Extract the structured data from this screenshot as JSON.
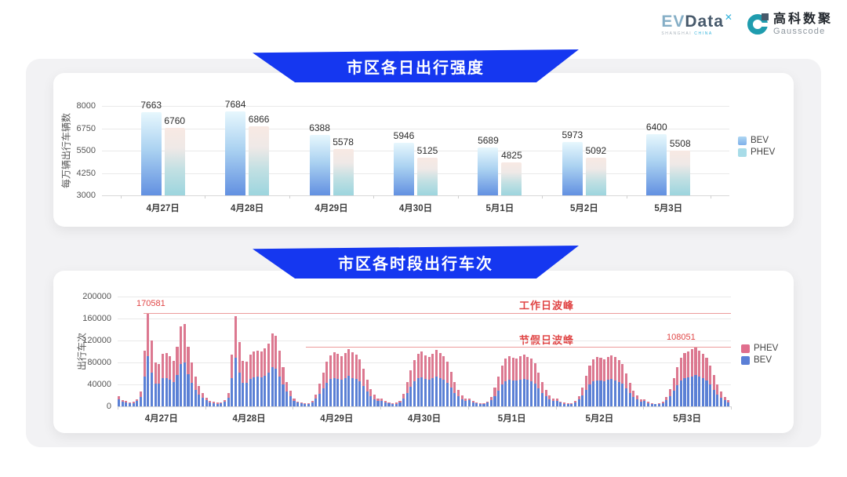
{
  "header": {
    "evdata_logo": {
      "part_ev": "EV",
      "part_data": "Data",
      "sup": "✕",
      "sub_left": "SHANGHAI",
      "sub_right": "CHINA"
    },
    "gausscode_logo": {
      "name_cn": "高科数聚",
      "name_en": "Gausscode"
    }
  },
  "colors": {
    "banner_blue": "#1537f0",
    "bev_blue": "#5b80d5",
    "phev_pink": "#dc7890",
    "annotation_red": "#e04545",
    "bev_gradient": [
      "#e7f7fd",
      "#6290e1"
    ],
    "phev_gradient": [
      "#f8e9e3",
      "#9cd5de"
    ]
  },
  "chart_data": [
    {
      "type": "bar",
      "title": "市区各日出行强度",
      "ylabel": "每万辆出行车辆数",
      "ylim": [
        3000,
        8000
      ],
      "yticks": [
        3000,
        4250,
        5500,
        6750,
        8000
      ],
      "grid": true,
      "legend_position": "right",
      "categories": [
        "4月27日",
        "4月28日",
        "4月29日",
        "4月30日",
        "5月1日",
        "5月2日",
        "5月3日"
      ],
      "series": [
        {
          "name": "BEV",
          "values": [
            7663,
            7684,
            6388,
            5946,
            5689,
            5973,
            6400
          ]
        },
        {
          "name": "PHEV",
          "values": [
            6760,
            6866,
            5578,
            5125,
            4825,
            5092,
            5508
          ]
        }
      ]
    },
    {
      "type": "bar",
      "stacked": true,
      "title": "市区各时段出行车次",
      "ylabel": "出行车次",
      "ylim": [
        0,
        200000
      ],
      "yticks": [
        0,
        40000,
        80000,
        120000,
        160000,
        200000
      ],
      "grid": true,
      "legend_position": "right",
      "legend": [
        "PHEV",
        "BEV"
      ],
      "categories": [
        "4月27日",
        "4月28日",
        "4月29日",
        "4月30日",
        "5月1日",
        "5月2日",
        "5月3日"
      ],
      "bars_per_category": 24,
      "annotations": {
        "workday_peak": {
          "label": "工作日波峰",
          "value": 170581
        },
        "holiday_peak": {
          "label": "节假日波峰",
          "value": 108051
        }
      },
      "series": [
        {
          "name": "BEV",
          "values_by_day": [
            [
              13000,
              8500,
              6800,
              5400,
              6100,
              9400,
              17500,
              55000,
              91000,
              62000,
              42000,
              41000,
              51000,
              52000,
              48500,
              44000,
              57500,
              77000,
              79500,
              58000,
              43000,
              30000,
              22000,
              15500
            ],
            [
              11500,
              7600,
              5800,
              4700,
              5100,
              8300,
              16000,
              51500,
              88000,
              61500,
              43500,
              43000,
              50500,
              53500,
              54000,
              53000,
              56000,
              61000,
              71000,
              68000,
              54000,
              39500,
              27000,
              18000
            ],
            [
              10200,
              6600,
              5100,
              4000,
              4400,
              7300,
              14000,
              23500,
              33500,
              43500,
              49500,
              52000,
              50500,
              49000,
              51500,
              55500,
              52000,
              50000,
              46000,
              37000,
              27000,
              19000,
              13500,
              9700
            ],
            [
              10500,
              6900,
              5100,
              4400,
              4700,
              7700,
              15000,
              24500,
              35500,
              45500,
              51000,
              53500,
              49500,
              48000,
              51000,
              54500,
              51500,
              48500,
              43500,
              34500,
              25000,
              18000,
              13000,
              9400
            ],
            [
              10800,
              6900,
              5100,
              4400,
              4400,
              6600,
              11800,
              19000,
              29000,
              39500,
              46000,
              48500,
              47000,
              46500,
              48000,
              50000,
              48000,
              46000,
              41500,
              33500,
              25000,
              18000,
              13200,
              9400
            ],
            [
              10100,
              6600,
              4800,
              4000,
              4400,
              7000,
              12200,
              19500,
              30000,
              40000,
              45500,
              47500,
              46500,
              45500,
              48000,
              49500,
              47500,
              45000,
              41000,
              32500,
              24000,
              17200,
              12600,
              9100
            ],
            [
              9400,
              6200,
              4400,
              3700,
              4000,
              6200,
              11200,
              18000,
              28000,
              38500,
              46500,
              51000,
              53000,
              55000,
              57051,
              54000,
              51000,
              46500,
              40000,
              30500,
              22000,
              15500,
              11000,
              7800
            ]
          ]
        },
        {
          "name": "PHEV",
          "values_by_day": [
            [
              5500,
              3500,
              2700,
              2100,
              2400,
              3600,
              9500,
              46000,
              79581,
              58000,
              38000,
              35500,
              44500,
              44500,
              42500,
              38500,
              51000,
              68500,
              70000,
              51000,
              37000,
              24000,
              15000,
              8500
            ],
            [
              4500,
              2900,
              2200,
              1800,
              1900,
              3200,
              9000,
              43500,
              76500,
              56000,
              39000,
              39000,
              44500,
              47000,
              48000,
              47000,
              49500,
              54000,
              62500,
              60500,
              47000,
              32500,
              18000,
              10000
            ],
            [
              3800,
              2400,
              1900,
              1500,
              1600,
              2700,
              7000,
              18500,
              28500,
              37500,
              44000,
              46000,
              45000,
              43000,
              45500,
              49500,
              46500,
              44000,
              40000,
              31000,
              21000,
              13000,
              7500,
              4800
            ],
            [
              4000,
              2600,
              1900,
              1600,
              1800,
              2800,
              7500,
              19500,
              30500,
              39500,
              45000,
              47000,
              43500,
              42000,
              44500,
              48500,
              46000,
              42500,
              37500,
              28500,
              19500,
              12000,
              7000,
              4600
            ],
            [
              4200,
              2600,
              1900,
              1600,
              1600,
              2400,
              5700,
              15000,
              25000,
              34500,
              41000,
              43000,
              42000,
              41000,
              43000,
              45000,
              42500,
              40500,
              36500,
              28500,
              20000,
              12500,
              7300,
              4600
            ],
            [
              3900,
              2400,
              1700,
              1500,
              1600,
              2500,
              5800,
              15500,
              26000,
              35000,
              40500,
              42500,
              41500,
              40500,
              42500,
              44000,
              42000,
              40000,
              36000,
              27500,
              19000,
              11800,
              6900,
              4400
            ],
            [
              3600,
              2300,
              1600,
              1300,
              1500,
              2300,
              5300,
              14000,
              24000,
              33500,
              41500,
              45500,
              47500,
              49000,
              51000,
              48000,
              45000,
              41500,
              35000,
              26500,
              17500,
              11000,
              6500,
              3700
            ]
          ]
        }
      ]
    }
  ]
}
